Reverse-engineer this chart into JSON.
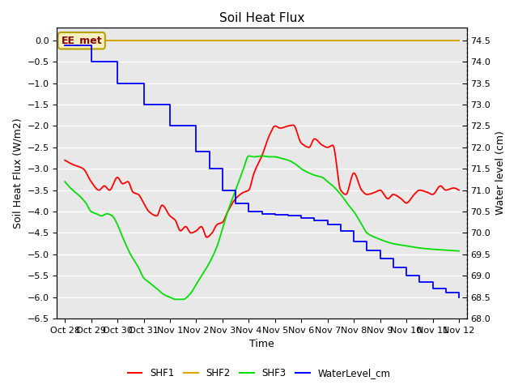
{
  "title": "Soil Heat Flux",
  "ylabel_left": "Soil Heat Flux (W/m2)",
  "ylabel_right": "Water level (cm)",
  "xlabel": "Time",
  "ylim_left": [
    -6.5,
    0.3
  ],
  "ylim_right": [
    68.0,
    74.8
  ],
  "plot_bg_color": "#e8e8e8",
  "ee_met_label": "EE_met",
  "ee_met_color": "#d4a800",
  "x_tick_labels": [
    "Oct 28",
    "Oct 29",
    "Oct 30",
    "Oct 31",
    "Nov 1",
    "Nov 2",
    "Nov 3",
    "Nov 4",
    "Nov 5",
    "Nov 6",
    "Nov 7",
    "Nov 8",
    "Nov 9",
    "Nov 10",
    "Nov 11",
    "Nov 12"
  ],
  "shf1_color": "#ff0000",
  "shf2_color": "#ffa500",
  "shf3_color": "#00dd00",
  "water_color": "#0000ff",
  "legend_labels": [
    "SHF1",
    "SHF2",
    "SHF3",
    "WaterLevel_cm"
  ],
  "grid_color": "#ffffff",
  "ee_met_box_color": "#f5f0c0",
  "ee_met_edge_color": "#b8a000"
}
